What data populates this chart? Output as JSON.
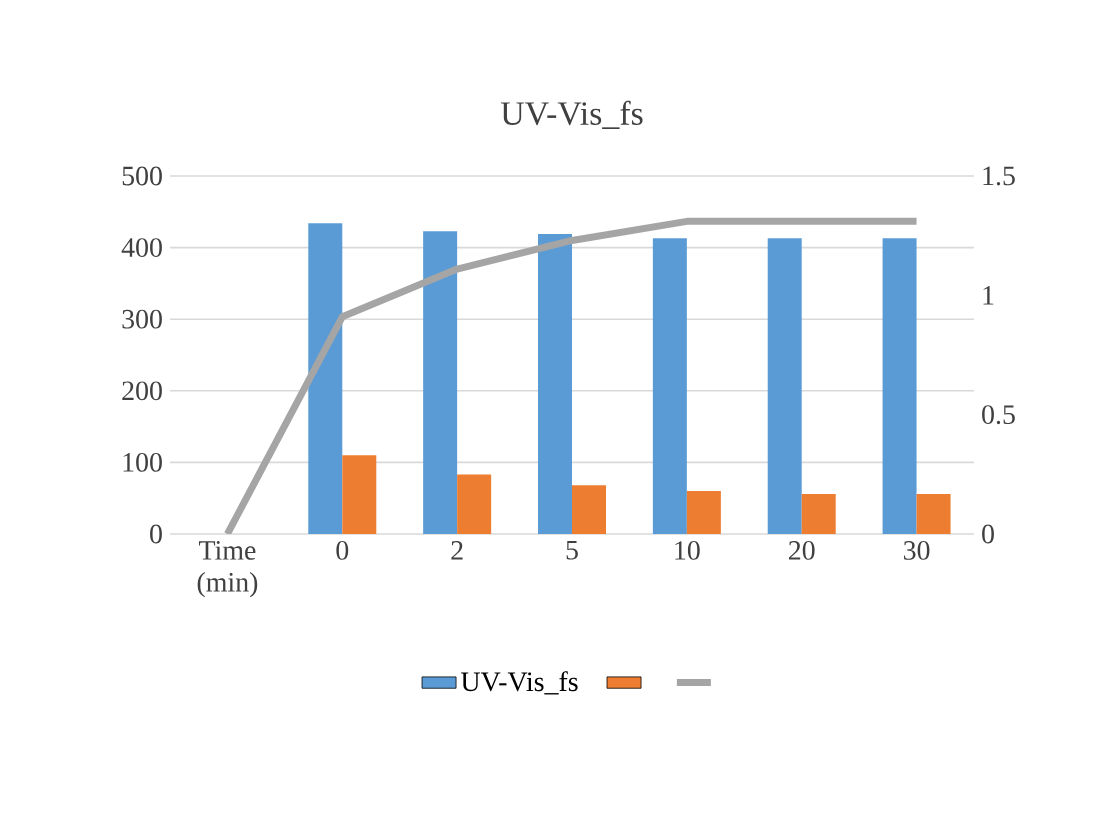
{
  "chart_data": {
    "type": "bar",
    "title": "UV-Vis_fs",
    "categories": [
      "Time (min)",
      "0",
      "2",
      "5",
      "10",
      "20",
      "30"
    ],
    "series": [
      {
        "name": "UV-Vis_fs",
        "color": "#5b9bd5",
        "values": [
          null,
          434,
          423,
          419,
          413,
          413,
          413
        ]
      },
      {
        "color": "#ed7d31",
        "values": [
          null,
          110,
          83,
          68,
          60,
          56,
          56
        ]
      },
      {
        "type": "line",
        "axis": "y2",
        "color": "#a5a5a5",
        "values": [
          0,
          0.91,
          1.11,
          1.23,
          1.31,
          1.31,
          1.31
        ]
      }
    ],
    "ylim": [
      0,
      500
    ],
    "yticks": [
      0,
      100,
      200,
      300,
      400,
      500
    ],
    "y2lim": [
      0,
      1.5
    ],
    "y2ticks": [
      0,
      0.5,
      1,
      1.5
    ],
    "grid": "y",
    "legend": "bottom"
  }
}
